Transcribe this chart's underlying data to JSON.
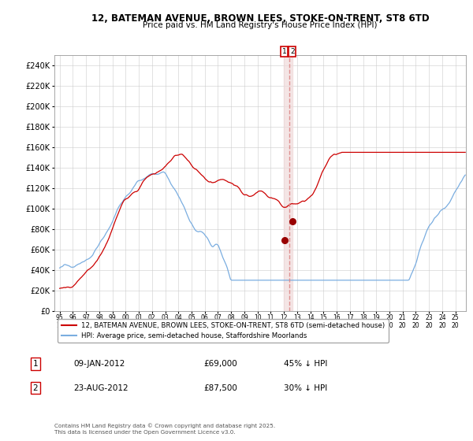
{
  "title": "12, BATEMAN AVENUE, BROWN LEES, STOKE-ON-TRENT, ST8 6TD",
  "subtitle": "Price paid vs. HM Land Registry's House Price Index (HPI)",
  "hpi_color": "#7aade0",
  "price_color": "#cc0000",
  "marker_color": "#990000",
  "vspan_color": "#f0dada",
  "vline_color": "#dd8888",
  "annotation_box_color": "#cc0000",
  "ylim": [
    0,
    250000
  ],
  "ytick_step": 20000,
  "xlim_left": 1994.6,
  "xlim_right": 2025.8,
  "legend_label_price": "12, BATEMAN AVENUE, BROWN LEES, STOKE-ON-TRENT, ST8 6TD (semi-detached house)",
  "legend_label_hpi": "HPI: Average price, semi-detached house, Staffordshire Moorlands",
  "transaction1_date": 2012.03,
  "transaction1_price": 69000,
  "transaction2_date": 2012.64,
  "transaction2_price": 87500,
  "copyright_text": "Contains HM Land Registry data © Crown copyright and database right 2025.\nThis data is licensed under the Open Government Licence v3.0.",
  "background_color": "#ffffff",
  "grid_color": "#cccccc",
  "grid_alpha": 0.8
}
